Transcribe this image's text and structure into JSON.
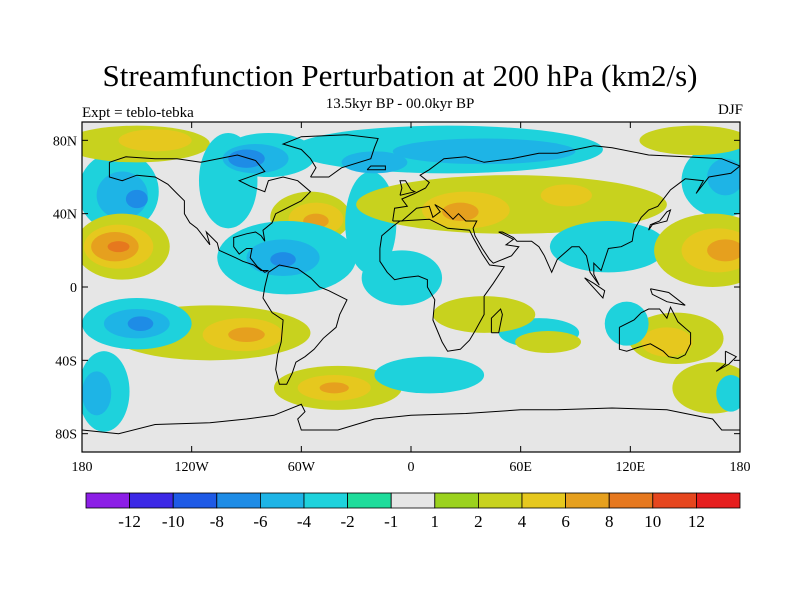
{
  "title": "Streamfunction Perturbation at 200 hPa (km2/s)",
  "subtitle": "13.5kyr BP - 00.0kyr BP",
  "experiment": "Expt = teblo-tebka",
  "season": "DJF",
  "map": {
    "lon_range": [
      -180,
      180
    ],
    "lat_range": [
      -90,
      90
    ],
    "background_color": "#e6e6e6",
    "coastline_color": "#000000",
    "lon_ticks": [
      "180",
      "120W",
      "60W",
      "0",
      "60E",
      "120E",
      "180"
    ],
    "lat_ticks": [
      "80N",
      "40N",
      "0",
      "40S",
      "80S"
    ]
  },
  "colorbar": {
    "colors": [
      "#8c1ee6",
      "#3c28e6",
      "#1e5ae6",
      "#1e8ce6",
      "#1eb4e6",
      "#1ed2dc",
      "#1edc9b",
      "#e6e6e6",
      "#9bd21e",
      "#c8d21e",
      "#e6c81e",
      "#e6a01e",
      "#e6781e",
      "#e6461e",
      "#e61e1e"
    ],
    "labels": [
      "-12",
      "-10",
      "-8",
      "-6",
      "-4",
      "-2",
      "-1",
      "1",
      "2",
      "4",
      "6",
      "8",
      "10",
      "12"
    ]
  },
  "field_regions": [
    {
      "level": "-2",
      "lon": -160,
      "lat": 52,
      "rx": 22,
      "ry": 22,
      "rot": 0
    },
    {
      "level": "-4",
      "lon": -158,
      "lat": 50,
      "rx": 14,
      "ry": 13,
      "rot": 0
    },
    {
      "level": "-6",
      "lon": -150,
      "lat": 48,
      "rx": 6,
      "ry": 5,
      "rot": 0
    },
    {
      "level": "2",
      "lon": -158,
      "lat": 22,
      "rx": 26,
      "ry": 18,
      "rot": 0
    },
    {
      "level": "4",
      "lon": -160,
      "lat": 22,
      "rx": 19,
      "ry": 12,
      "rot": 0
    },
    {
      "level": "6",
      "lon": -162,
      "lat": 22,
      "rx": 13,
      "ry": 8,
      "rot": 0
    },
    {
      "level": "8",
      "lon": -160,
      "lat": 22,
      "rx": 6,
      "ry": 3,
      "rot": 0
    },
    {
      "level": "2",
      "lon": -150,
      "lat": 78,
      "rx": 40,
      "ry": 10,
      "rot": 0
    },
    {
      "level": "4",
      "lon": -140,
      "lat": 80,
      "rx": 20,
      "ry": 6,
      "rot": 0
    },
    {
      "level": "-2",
      "lon": -100,
      "lat": 58,
      "rx": 16,
      "ry": 26,
      "rot": 0
    },
    {
      "level": "-2",
      "lon": -78,
      "lat": 72,
      "rx": 26,
      "ry": 12,
      "rot": 0
    },
    {
      "level": "-4",
      "lon": -85,
      "lat": 70,
      "rx": 18,
      "ry": 8,
      "rot": 0
    },
    {
      "level": "-6",
      "lon": -90,
      "lat": 70,
      "rx": 10,
      "ry": 5,
      "rot": 0
    },
    {
      "level": "2",
      "lon": -55,
      "lat": 38,
      "rx": 22,
      "ry": 14,
      "rot": 0
    },
    {
      "level": "4",
      "lon": -52,
      "lat": 37,
      "rx": 15,
      "ry": 9,
      "rot": 0
    },
    {
      "level": "6",
      "lon": -52,
      "lat": 36,
      "rx": 7,
      "ry": 4,
      "rot": 0
    },
    {
      "level": "-2",
      "lon": -68,
      "lat": 16,
      "rx": 38,
      "ry": 20,
      "rot": 0
    },
    {
      "level": "-4",
      "lon": -70,
      "lat": 16,
      "rx": 20,
      "ry": 10,
      "rot": 0
    },
    {
      "level": "-6",
      "lon": -70,
      "lat": 15,
      "rx": 7,
      "ry": 4,
      "rot": 0
    },
    {
      "level": "-2",
      "lon": -22,
      "lat": 35,
      "rx": 14,
      "ry": 28,
      "rot": 0
    },
    {
      "level": "-2",
      "lon": -5,
      "lat": 5,
      "rx": 22,
      "ry": 15,
      "rot": 0
    },
    {
      "level": "-2",
      "lon": 20,
      "lat": 75,
      "rx": 85,
      "ry": 13,
      "rot": 0
    },
    {
      "level": "-4",
      "lon": 40,
      "lat": 74,
      "rx": 50,
      "ry": 7,
      "rot": 0
    },
    {
      "level": "-4",
      "lon": -20,
      "lat": 68,
      "rx": 18,
      "ry": 6,
      "rot": 0
    },
    {
      "level": "2",
      "lon": 55,
      "lat": 45,
      "rx": 85,
      "ry": 16,
      "rot": 0
    },
    {
      "level": "4",
      "lon": 30,
      "lat": 42,
      "rx": 24,
      "ry": 10,
      "rot": 0
    },
    {
      "level": "6",
      "lon": 27,
      "lat": 41,
      "rx": 10,
      "ry": 5,
      "rot": 0
    },
    {
      "level": "4",
      "lon": 85,
      "lat": 50,
      "rx": 14,
      "ry": 6,
      "rot": 0
    },
    {
      "level": "-2",
      "lon": 108,
      "lat": 22,
      "rx": 32,
      "ry": 14,
      "rot": 0
    },
    {
      "level": "-2",
      "lon": 170,
      "lat": 58,
      "rx": 22,
      "ry": 20,
      "rot": 0
    },
    {
      "level": "-4",
      "lon": 172,
      "lat": 60,
      "rx": 10,
      "ry": 10,
      "rot": 0
    },
    {
      "level": "2",
      "lon": 165,
      "lat": 20,
      "rx": 32,
      "ry": 20,
      "rot": 0
    },
    {
      "level": "4",
      "lon": 168,
      "lat": 20,
      "rx": 20,
      "ry": 12,
      "rot": 0
    },
    {
      "level": "6",
      "lon": 172,
      "lat": 20,
      "rx": 10,
      "ry": 6,
      "rot": 0
    },
    {
      "level": "2",
      "lon": 155,
      "lat": 80,
      "rx": 30,
      "ry": 8,
      "rot": 0
    },
    {
      "level": "2",
      "lon": -110,
      "lat": -25,
      "rx": 55,
      "ry": 15,
      "rot": 0
    },
    {
      "level": "4",
      "lon": -92,
      "lat": -26,
      "rx": 22,
      "ry": 9,
      "rot": 0
    },
    {
      "level": "6",
      "lon": -90,
      "lat": -26,
      "rx": 10,
      "ry": 4,
      "rot": 0
    },
    {
      "level": "-2",
      "lon": -150,
      "lat": -20,
      "rx": 30,
      "ry": 14,
      "rot": 0
    },
    {
      "level": "-4",
      "lon": -150,
      "lat": -20,
      "rx": 18,
      "ry": 8,
      "rot": 0
    },
    {
      "level": "-6",
      "lon": -148,
      "lat": -20,
      "rx": 7,
      "ry": 4,
      "rot": 0
    },
    {
      "level": "-2",
      "lon": -168,
      "lat": -57,
      "rx": 14,
      "ry": 22,
      "rot": 0
    },
    {
      "level": "-4",
      "lon": -172,
      "lat": -58,
      "rx": 8,
      "ry": 12,
      "rot": 0
    },
    {
      "level": "2",
      "lon": -40,
      "lat": -55,
      "rx": 35,
      "ry": 12,
      "rot": 0
    },
    {
      "level": "4",
      "lon": -42,
      "lat": -55,
      "rx": 20,
      "ry": 7,
      "rot": 0
    },
    {
      "level": "6",
      "lon": -42,
      "lat": -55,
      "rx": 8,
      "ry": 3,
      "rot": 0
    },
    {
      "level": "-2",
      "lon": 10,
      "lat": -48,
      "rx": 30,
      "ry": 10,
      "rot": 0
    },
    {
      "level": "-2",
      "lon": 70,
      "lat": -25,
      "rx": 22,
      "ry": 8,
      "rot": 0
    },
    {
      "level": "2",
      "lon": 40,
      "lat": -15,
      "rx": 28,
      "ry": 10,
      "rot": 0
    },
    {
      "level": "2",
      "lon": 75,
      "lat": -30,
      "rx": 18,
      "ry": 6,
      "rot": 0
    },
    {
      "level": "2",
      "lon": 145,
      "lat": -28,
      "rx": 26,
      "ry": 14,
      "rot": 0
    },
    {
      "level": "4",
      "lon": 140,
      "lat": -30,
      "rx": 14,
      "ry": 8,
      "rot": 0
    },
    {
      "level": "-2",
      "lon": 118,
      "lat": -20,
      "rx": 12,
      "ry": 12,
      "rot": 0
    },
    {
      "level": "2",
      "lon": 165,
      "lat": -55,
      "rx": 22,
      "ry": 14,
      "rot": 0
    },
    {
      "level": "-2",
      "lon": 175,
      "lat": -58,
      "rx": 8,
      "ry": 10,
      "rot": 0
    }
  ]
}
